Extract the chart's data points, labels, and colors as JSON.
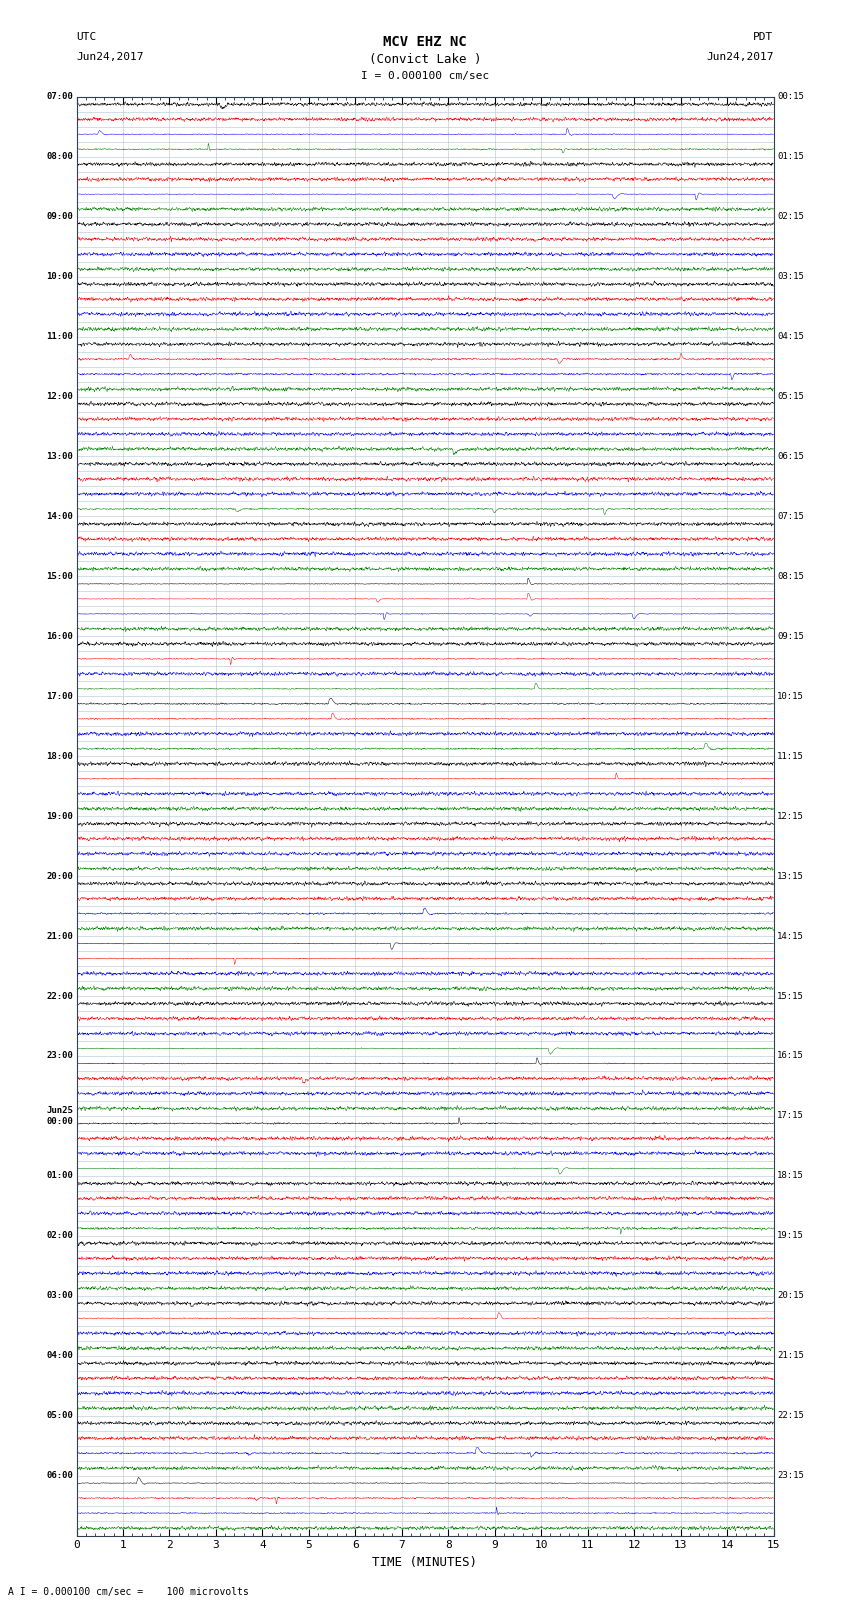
{
  "title_line1": "MCV EHZ NC",
  "title_line2": "(Convict Lake )",
  "scale_label": "I = 0.000100 cm/sec",
  "left_header_line1": "UTC",
  "left_header_line2": "Jun24,2017",
  "right_header_line1": "PDT",
  "right_header_line2": "Jun24,2017",
  "bottom_label": "TIME (MINUTES)",
  "scale_note": "A I = 0.000100 cm/sec =    100 microvolts",
  "xlim": [
    0,
    15
  ],
  "xticks": [
    0,
    1,
    2,
    3,
    4,
    5,
    6,
    7,
    8,
    9,
    10,
    11,
    12,
    13,
    14,
    15
  ],
  "num_rows": 96,
  "colors_cycle": [
    "black",
    "red",
    "blue",
    "green"
  ],
  "left_labels": [
    "07:00",
    "",
    "",
    "",
    "08:00",
    "",
    "",
    "",
    "09:00",
    "",
    "",
    "",
    "10:00",
    "",
    "",
    "",
    "11:00",
    "",
    "",
    "",
    "12:00",
    "",
    "",
    "",
    "13:00",
    "",
    "",
    "",
    "14:00",
    "",
    "",
    "",
    "15:00",
    "",
    "",
    "",
    "16:00",
    "",
    "",
    "",
    "17:00",
    "",
    "",
    "",
    "18:00",
    "",
    "",
    "",
    "19:00",
    "",
    "",
    "",
    "20:00",
    "",
    "",
    "",
    "21:00",
    "",
    "",
    "",
    "22:00",
    "",
    "",
    "",
    "23:00",
    "",
    "",
    "",
    "Jun25\n00:00",
    "",
    "",
    "",
    "01:00",
    "",
    "",
    "",
    "02:00",
    "",
    "",
    "",
    "03:00",
    "",
    "",
    "",
    "04:00",
    "",
    "",
    "",
    "05:00",
    "",
    "",
    "",
    "06:00",
    "",
    "",
    ""
  ],
  "right_labels": [
    "00:15",
    "",
    "",
    "",
    "01:15",
    "",
    "",
    "",
    "02:15",
    "",
    "",
    "",
    "03:15",
    "",
    "",
    "",
    "04:15",
    "",
    "",
    "",
    "05:15",
    "",
    "",
    "",
    "06:15",
    "",
    "",
    "",
    "07:15",
    "",
    "",
    "",
    "08:15",
    "",
    "",
    "",
    "09:15",
    "",
    "",
    "",
    "10:15",
    "",
    "",
    "",
    "11:15",
    "",
    "",
    "",
    "12:15",
    "",
    "",
    "",
    "13:15",
    "",
    "",
    "",
    "14:15",
    "",
    "",
    "",
    "15:15",
    "",
    "",
    "",
    "16:15",
    "",
    "",
    "",
    "17:15",
    "",
    "",
    "",
    "18:15",
    "",
    "",
    "",
    "19:15",
    "",
    "",
    "",
    "20:15",
    "",
    "",
    "",
    "21:15",
    "",
    "",
    "",
    "22:15",
    "",
    "",
    "",
    "23:15",
    "",
    "",
    ""
  ],
  "background_color": "#ffffff",
  "plot_bg": "#ffffff",
  "grid_color": "#b0c4d0",
  "trace_noise_amp": 0.012,
  "seed": 42
}
